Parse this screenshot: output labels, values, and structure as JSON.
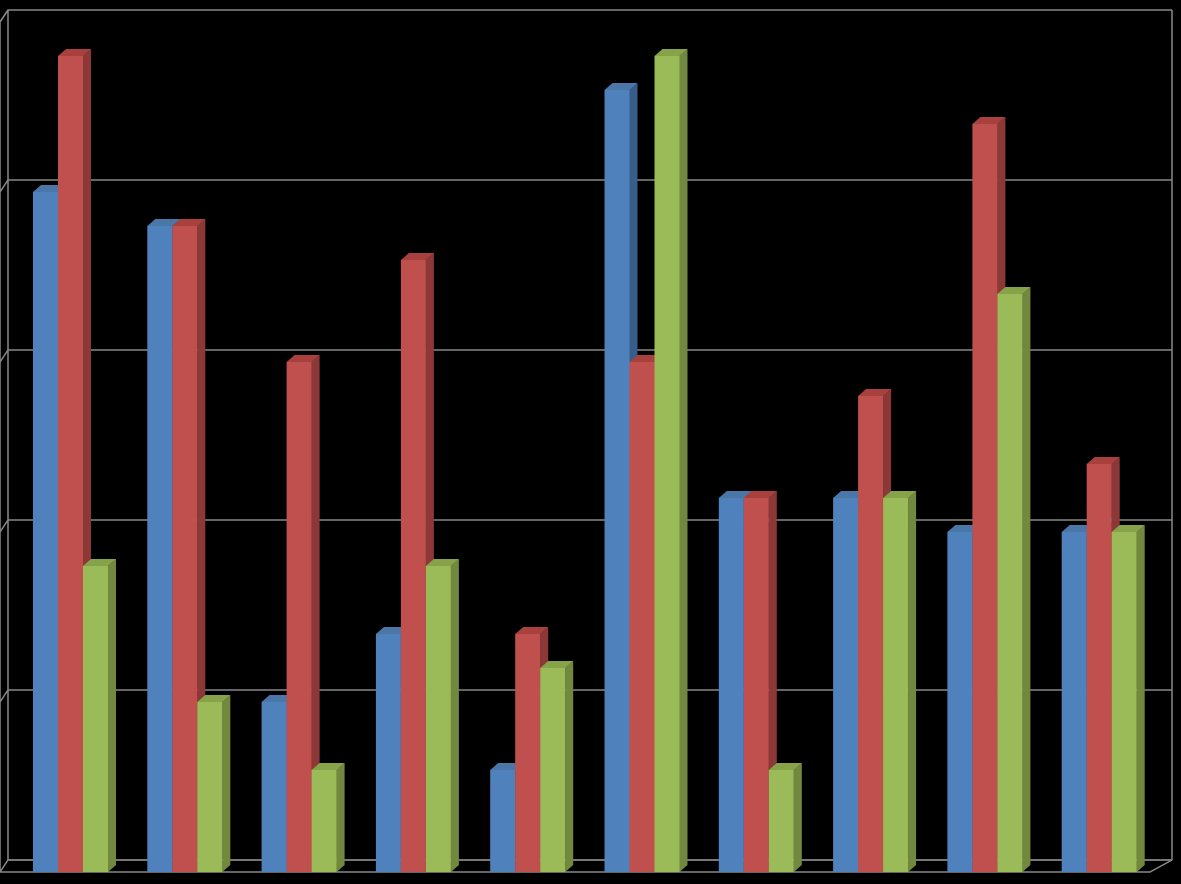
{
  "chart_data": {
    "type": "bar3d",
    "series": [
      {
        "color": "#4f81bd",
        "side": "#385d8a",
        "top": "#4a76a8",
        "values": [
          4.0,
          3.8,
          1.0,
          1.4,
          0.6,
          4.6,
          2.2,
          2.2,
          2.0,
          2.0
        ]
      },
      {
        "color": "#c0504d",
        "side": "#8c3836",
        "top": "#a8413e",
        "values": [
          4.8,
          3.8,
          3.0,
          3.6,
          1.4,
          3.0,
          2.2,
          2.8,
          4.4,
          2.4
        ]
      },
      {
        "color": "#9bbb59",
        "side": "#71893f",
        "top": "#86a34a",
        "values": [
          1.8,
          1.0,
          0.6,
          1.8,
          1.2,
          4.8,
          0.6,
          2.2,
          3.4,
          2.0
        ]
      }
    ],
    "ylim": [
      0,
      5
    ],
    "yticks": [
      0,
      1,
      2,
      3,
      4,
      5
    ],
    "grid": true
  }
}
